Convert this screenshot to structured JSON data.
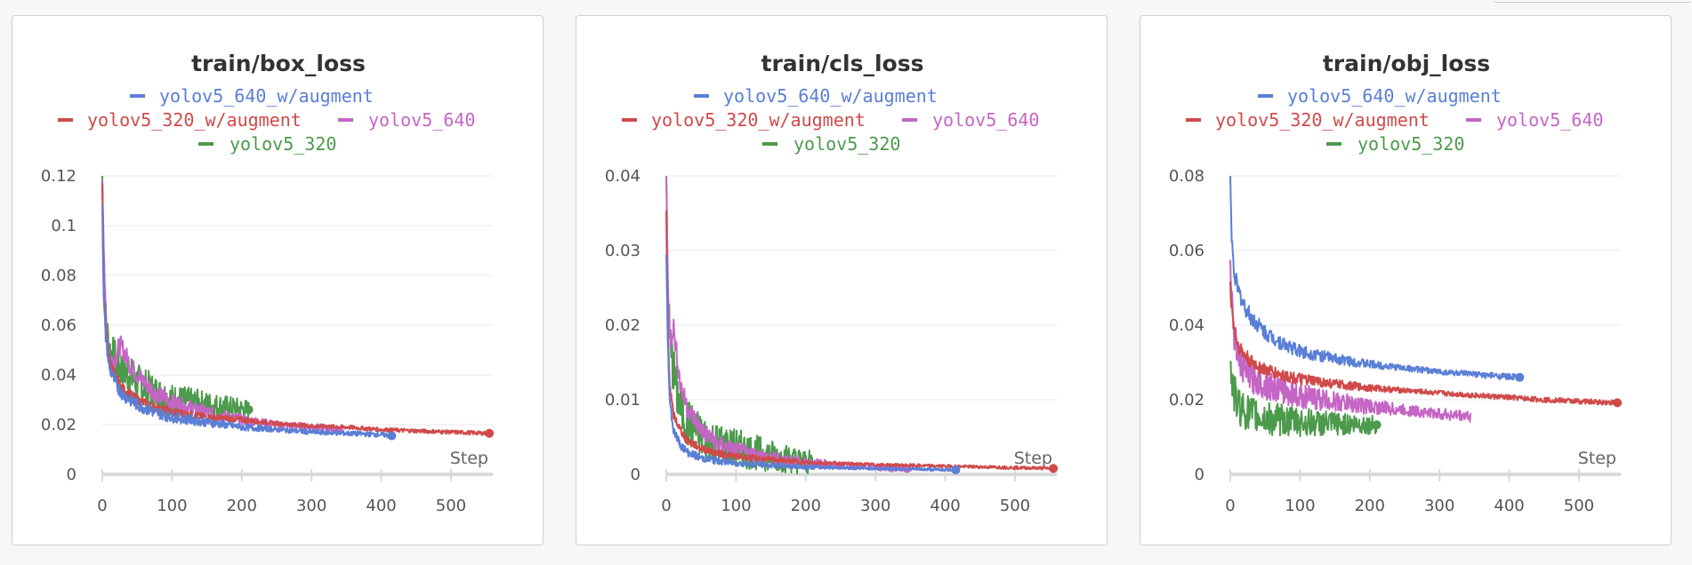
{
  "chart_data": [
    {
      "type": "line",
      "title": "train/box_loss",
      "xlabel": "Step",
      "ylabel": "",
      "xlim": [
        0,
        560
      ],
      "ylim": [
        0,
        0.12
      ],
      "xticks": [
        0,
        100,
        200,
        300,
        400,
        500
      ],
      "yticks": [
        0,
        0.02,
        0.04,
        0.06,
        0.08,
        0.1,
        0.12
      ],
      "xtick_labels": [
        "0",
        "100",
        "200",
        "300",
        "400",
        "500"
      ],
      "ytick_labels": [
        "0",
        "0.02",
        "0.04",
        "0.06",
        "0.08",
        "0.1",
        "0.12"
      ],
      "legend": "top",
      "grid": true,
      "series": [
        {
          "name": "yolov5_640_w/augment",
          "color": "#5a7fd6",
          "end_marker": true,
          "noise": 0.001,
          "x": [
            0,
            2,
            5,
            10,
            20,
            30,
            50,
            75,
            100,
            150,
            200,
            250,
            300,
            350,
            400,
            415
          ],
          "y": [
            0.11,
            0.07,
            0.055,
            0.043,
            0.036,
            0.032,
            0.028,
            0.025,
            0.023,
            0.021,
            0.019,
            0.018,
            0.017,
            0.0165,
            0.016,
            0.0155
          ]
        },
        {
          "name": "yolov5_320_w/augment",
          "color": "#d04a4a",
          "end_marker": true,
          "noise": 0.0008,
          "x": [
            0,
            2,
            5,
            10,
            20,
            30,
            50,
            75,
            100,
            150,
            200,
            250,
            300,
            350,
            400,
            450,
            500,
            555
          ],
          "y": [
            0.115,
            0.075,
            0.058,
            0.046,
            0.038,
            0.034,
            0.03,
            0.027,
            0.025,
            0.023,
            0.022,
            0.0205,
            0.0195,
            0.019,
            0.018,
            0.0175,
            0.017,
            0.0165
          ]
        },
        {
          "name": "yolov5_640",
          "color": "#c565c5",
          "end_marker": false,
          "noise": 0.0015,
          "x": [
            0,
            5,
            10,
            15,
            20,
            25,
            30,
            40,
            50,
            75,
            100,
            150,
            200,
            250,
            300,
            345
          ],
          "y": [
            0.12,
            0.06,
            0.048,
            0.045,
            0.048,
            0.052,
            0.05,
            0.044,
            0.04,
            0.033,
            0.029,
            0.025,
            0.022,
            0.02,
            0.019,
            0.018
          ]
        },
        {
          "name": "yolov5_320",
          "color": "#4c9a4c",
          "end_marker": true,
          "noise": 0.003,
          "x": [
            0,
            2,
            5,
            10,
            20,
            30,
            50,
            75,
            100,
            150,
            210
          ],
          "y": [
            0.122,
            0.08,
            0.062,
            0.05,
            0.045,
            0.042,
            0.037,
            0.033,
            0.03,
            0.028,
            0.026
          ]
        }
      ]
    },
    {
      "type": "line",
      "title": "train/cls_loss",
      "xlabel": "Step",
      "ylabel": "",
      "xlim": [
        0,
        560
      ],
      "ylim": [
        0,
        0.04
      ],
      "xticks": [
        0,
        100,
        200,
        300,
        400,
        500
      ],
      "yticks": [
        0,
        0.01,
        0.02,
        0.03,
        0.04
      ],
      "xtick_labels": [
        "0",
        "100",
        "200",
        "300",
        "400",
        "500"
      ],
      "ytick_labels": [
        "0",
        "0.01",
        "0.02",
        "0.03",
        "0.04"
      ],
      "legend": "top",
      "grid": true,
      "series": [
        {
          "name": "yolov5_640_w/augment",
          "color": "#5a7fd6",
          "end_marker": true,
          "noise": 0.0002,
          "x": [
            0,
            2,
            5,
            10,
            20,
            30,
            50,
            75,
            100,
            150,
            200,
            300,
            415
          ],
          "y": [
            0.03,
            0.018,
            0.01,
            0.006,
            0.004,
            0.003,
            0.0022,
            0.0018,
            0.0015,
            0.0012,
            0.001,
            0.0008,
            0.0006
          ]
        },
        {
          "name": "yolov5_320_w/augment",
          "color": "#d04a4a",
          "end_marker": true,
          "noise": 0.0002,
          "x": [
            0,
            2,
            5,
            10,
            20,
            30,
            50,
            75,
            100,
            150,
            200,
            300,
            400,
            555
          ],
          "y": [
            0.035,
            0.02,
            0.012,
            0.008,
            0.006,
            0.0045,
            0.0035,
            0.0028,
            0.0024,
            0.002,
            0.0016,
            0.0013,
            0.0011,
            0.0008
          ]
        },
        {
          "name": "yolov5_640",
          "color": "#c565c5",
          "end_marker": true,
          "noise": 0.0005,
          "x": [
            0,
            3,
            6,
            10,
            15,
            20,
            30,
            50,
            75,
            100,
            150,
            200,
            250,
            345
          ],
          "y": [
            0.041,
            0.022,
            0.018,
            0.02,
            0.016,
            0.012,
            0.009,
            0.006,
            0.004,
            0.0032,
            0.0022,
            0.0016,
            0.0012,
            0.0008
          ]
        },
        {
          "name": "yolov5_320",
          "color": "#4c9a4c",
          "end_marker": false,
          "noise": 0.0012,
          "x": [
            0,
            2,
            5,
            10,
            15,
            20,
            30,
            50,
            75,
            100,
            125,
            150,
            180,
            210
          ],
          "y": [
            0.04,
            0.025,
            0.018,
            0.014,
            0.011,
            0.009,
            0.007,
            0.005,
            0.004,
            0.0035,
            0.003,
            0.0025,
            0.002,
            0.0015
          ]
        }
      ]
    },
    {
      "type": "line",
      "title": "train/obj_loss",
      "xlabel": "Step",
      "ylabel": "",
      "xlim": [
        0,
        560
      ],
      "ylim": [
        0,
        0.08
      ],
      "xticks": [
        0,
        100,
        200,
        300,
        400,
        500
      ],
      "yticks": [
        0,
        0.02,
        0.04,
        0.06,
        0.08
      ],
      "xtick_labels": [
        "0",
        "100",
        "200",
        "300",
        "400",
        "500"
      ],
      "ytick_labels": [
        "0",
        "0.02",
        "0.04",
        "0.06",
        "0.08"
      ],
      "legend": "top",
      "grid": true,
      "series": [
        {
          "name": "yolov5_640_w/augment",
          "color": "#5a7fd6",
          "end_marker": true,
          "noise": 0.0008,
          "x": [
            0,
            1,
            3,
            5,
            10,
            20,
            30,
            50,
            75,
            100,
            150,
            200,
            250,
            300,
            350,
            415
          ],
          "y": [
            0.081,
            0.07,
            0.06,
            0.055,
            0.05,
            0.045,
            0.042,
            0.038,
            0.035,
            0.033,
            0.031,
            0.0295,
            0.0285,
            0.0275,
            0.0268,
            0.026
          ]
        },
        {
          "name": "yolov5_320_w/augment",
          "color": "#d04a4a",
          "end_marker": true,
          "noise": 0.0007,
          "x": [
            0,
            2,
            5,
            10,
            20,
            30,
            50,
            75,
            100,
            150,
            200,
            250,
            300,
            350,
            400,
            450,
            500,
            555
          ],
          "y": [
            0.05,
            0.045,
            0.04,
            0.035,
            0.032,
            0.03,
            0.028,
            0.0265,
            0.0255,
            0.0242,
            0.0232,
            0.0225,
            0.0218,
            0.0212,
            0.0206,
            0.02,
            0.0196,
            0.0192
          ]
        },
        {
          "name": "yolov5_640",
          "color": "#c565c5",
          "end_marker": false,
          "noise": 0.0015,
          "x": [
            0,
            3,
            5,
            10,
            15,
            20,
            30,
            50,
            75,
            100,
            150,
            200,
            250,
            300,
            345
          ],
          "y": [
            0.056,
            0.045,
            0.038,
            0.033,
            0.03,
            0.028,
            0.026,
            0.024,
            0.0225,
            0.021,
            0.0195,
            0.0182,
            0.0172,
            0.0162,
            0.0155
          ]
        },
        {
          "name": "yolov5_320",
          "color": "#4c9a4c",
          "end_marker": true,
          "noise": 0.0018,
          "x": [
            0,
            2,
            5,
            10,
            20,
            30,
            50,
            75,
            100,
            150,
            210
          ],
          "y": [
            0.031,
            0.026,
            0.022,
            0.019,
            0.017,
            0.016,
            0.015,
            0.0145,
            0.014,
            0.0135,
            0.0133
          ]
        }
      ]
    }
  ]
}
